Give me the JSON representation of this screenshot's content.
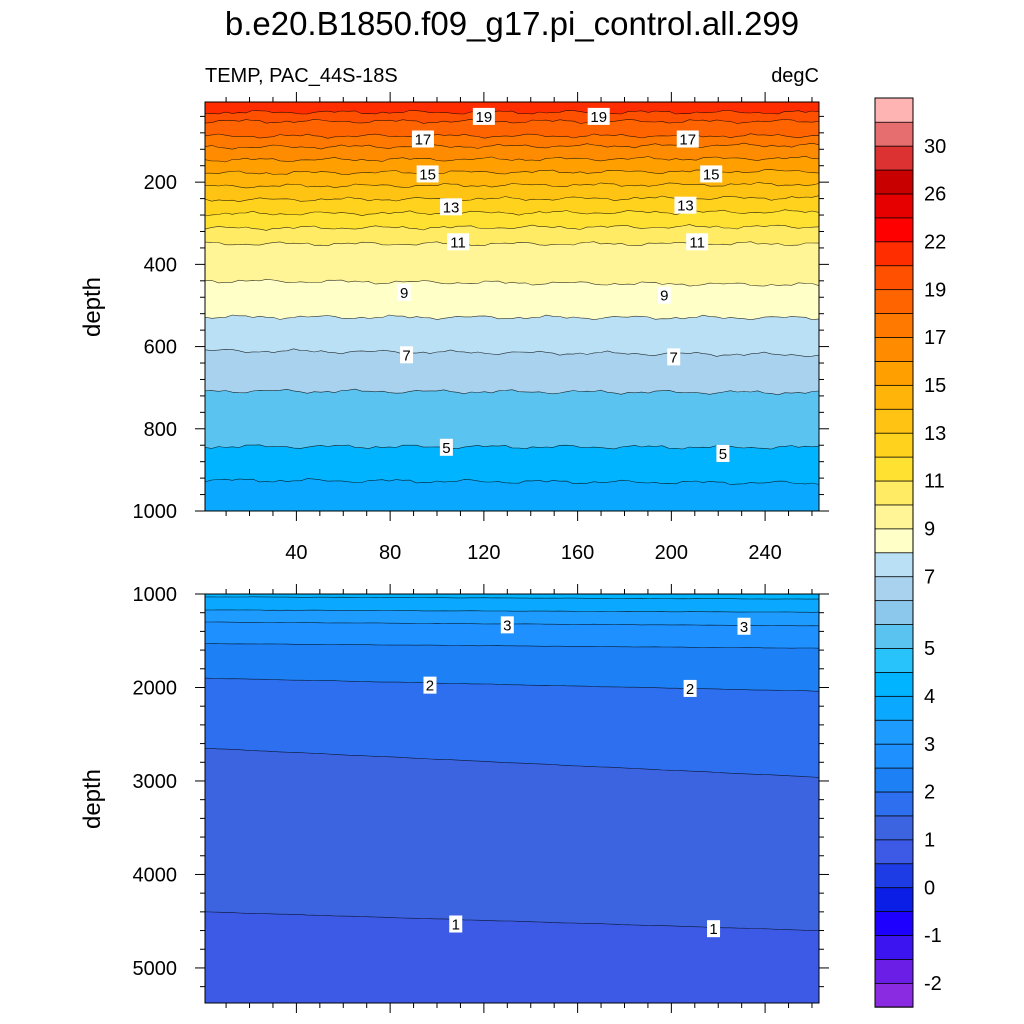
{
  "title": "b.e20.B1850.f09_g17.pi_control.all.299",
  "chart_data": [
    {
      "type": "contour",
      "panel": "upper",
      "left_label": "TEMP, PAC_44S-18S",
      "right_label": "degC",
      "ylabel": "depth",
      "xlabel": "",
      "xlim": [
        1,
        263
      ],
      "ylim": [
        1000,
        5
      ],
      "xticks": [
        40,
        80,
        120,
        160,
        200,
        240
      ],
      "yticks": [
        200,
        400,
        600,
        800,
        1000
      ],
      "isotherms": [
        {
          "level": 20,
          "depth": [
            30,
            30
          ]
        },
        {
          "level": 19,
          "depth": [
            52,
            52
          ]
        },
        {
          "level": 18,
          "depth": [
            88,
            87
          ]
        },
        {
          "level": 17,
          "depth": [
            115,
            110
          ]
        },
        {
          "level": 16,
          "depth": [
            146,
            142
          ]
        },
        {
          "level": 15,
          "depth": [
            178,
            173
          ]
        },
        {
          "level": 14,
          "depth": [
            210,
            205
          ]
        },
        {
          "level": 13,
          "depth": [
            243,
            238
          ]
        },
        {
          "level": 12,
          "depth": [
            277,
            272
          ]
        },
        {
          "level": 11,
          "depth": [
            312,
            308
          ]
        },
        {
          "level": 10,
          "depth": [
            350,
            350
          ]
        },
        {
          "level": 9,
          "depth": [
            440,
            450
          ]
        },
        {
          "level": 8,
          "depth": [
            528,
            530
          ]
        },
        {
          "level": 7,
          "depth": [
            610,
            620
          ]
        },
        {
          "level": 6,
          "depth": [
            708,
            712
          ]
        },
        {
          "level": 5,
          "depth": [
            843,
            845
          ]
        },
        {
          "level": 4,
          "depth": [
            925,
            932
          ]
        }
      ],
      "contour_labels": [
        {
          "text": "19",
          "x": 120,
          "depth": 40
        },
        {
          "text": "19",
          "x": 169,
          "depth": 40
        },
        {
          "text": "17",
          "x": 94,
          "depth": 95
        },
        {
          "text": "17",
          "x": 207,
          "depth": 95
        },
        {
          "text": "15",
          "x": 96,
          "depth": 180
        },
        {
          "text": "15",
          "x": 217,
          "depth": 180
        },
        {
          "text": "13",
          "x": 106,
          "depth": 260
        },
        {
          "text": "13",
          "x": 206,
          "depth": 256
        },
        {
          "text": "11",
          "x": 109,
          "depth": 345
        },
        {
          "text": "11",
          "x": 211,
          "depth": 345
        },
        {
          "text": "9",
          "x": 86,
          "depth": 468
        },
        {
          "text": "9",
          "x": 197,
          "depth": 475
        },
        {
          "text": "7",
          "x": 87,
          "depth": 620
        },
        {
          "text": "7",
          "x": 201,
          "depth": 625
        },
        {
          "text": "5",
          "x": 104,
          "depth": 845
        },
        {
          "text": "5",
          "x": 222,
          "depth": 860
        }
      ]
    },
    {
      "type": "contour",
      "panel": "lower",
      "ylabel": "depth",
      "xlabel": "",
      "xlim": [
        1,
        263
      ],
      "ylim": [
        5375,
        1000
      ],
      "xticks": [
        40,
        80,
        120,
        160,
        200,
        240
      ],
      "yticks": [
        1000,
        2000,
        3000,
        4000,
        5000
      ],
      "isotherms": [
        {
          "level": 4,
          "depth": [
            1030,
            1055
          ]
        },
        {
          "level": 3.5,
          "depth": [
            1170,
            1195
          ]
        },
        {
          "level": 3,
          "depth": [
            1300,
            1340
          ]
        },
        {
          "level": 2.5,
          "depth": [
            1530,
            1580
          ]
        },
        {
          "level": 2,
          "depth": [
            1900,
            2040
          ]
        },
        {
          "level": 1.5,
          "depth": [
            2650,
            2960
          ]
        },
        {
          "level": 1,
          "depth": [
            4400,
            4600
          ]
        }
      ],
      "contour_labels": [
        {
          "text": "3",
          "x": 130,
          "depth": 1330
        },
        {
          "text": "3",
          "x": 231,
          "depth": 1345
        },
        {
          "text": "2",
          "x": 97,
          "depth": 1975
        },
        {
          "text": "2",
          "x": 208,
          "depth": 2010
        },
        {
          "text": "1",
          "x": 108,
          "depth": 4530
        },
        {
          "text": "1",
          "x": 218,
          "depth": 4580
        }
      ]
    },
    {
      "type": "colorbar",
      "levels": [
        -2.5,
        -2,
        -1.5,
        -1,
        -0.5,
        0,
        0.5,
        1,
        1.5,
        2,
        2.5,
        3,
        3.5,
        4,
        4.5,
        5,
        5.5,
        6,
        7,
        8,
        9,
        10,
        11,
        12,
        13,
        14,
        15,
        16,
        17,
        18,
        19,
        20,
        22,
        24,
        26,
        28,
        30,
        32,
        34
      ],
      "tick_labels": [
        "-2",
        "-1",
        "0",
        "1",
        "2",
        "3",
        "4",
        "5",
        "7",
        "9",
        "11",
        "13",
        "15",
        "17",
        "19",
        "22",
        "26",
        "30"
      ],
      "colors": [
        "#8a2be2",
        "#6a1ee6",
        "#3c14f0",
        "#1e00ff",
        "#0a1ee6",
        "#1e3ce6",
        "#3c5ae6",
        "#3c64e0",
        "#2e6ff0",
        "#1e80f5",
        "#1e90ff",
        "#1e9bff",
        "#0aa8ff",
        "#00b4ff",
        "#28c3fa",
        "#5ac3f0",
        "#8cc8ec",
        "#a8d2ee",
        "#b9e0f5",
        "#ffffc8",
        "#fff596",
        "#ffeb64",
        "#ffe132",
        "#ffd21e",
        "#ffc314",
        "#ffb40a",
        "#ffa000",
        "#ff8c00",
        "#ff7800",
        "#ff6400",
        "#ff5000",
        "#ff2d00",
        "#ff0000",
        "#e60000",
        "#c80000",
        "#dc3232",
        "#e66e6e",
        "#ffb4b4"
      ]
    }
  ]
}
